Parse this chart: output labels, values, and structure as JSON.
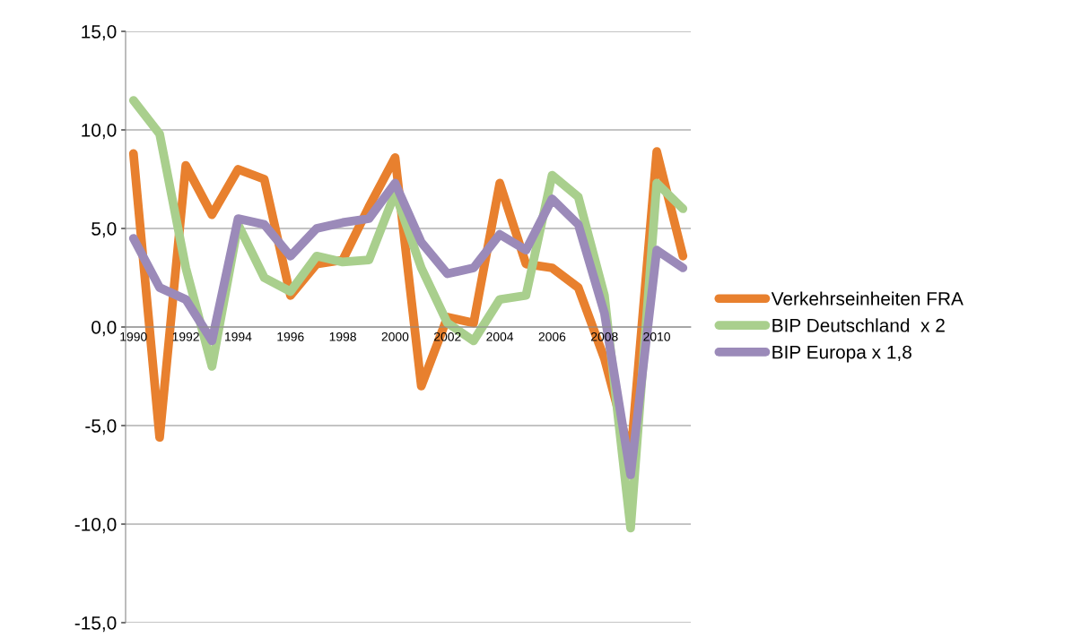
{
  "chart_data": {
    "type": "line",
    "categories": [
      "1990",
      null,
      "1992",
      null,
      "1994",
      null,
      "1996",
      null,
      "1998",
      null,
      "2000",
      null,
      "2002",
      null,
      "2004",
      null,
      "2006",
      null,
      "2008",
      null,
      "2010",
      null
    ],
    "series": [
      {
        "name": "Verkehrseinheiten FRA",
        "color": "#e8802e",
        "values": [
          8.8,
          -5.6,
          8.2,
          5.7,
          8.0,
          7.5,
          1.6,
          3.2,
          3.4,
          6.1,
          8.6,
          -3.0,
          0.5,
          0.2,
          7.3,
          3.2,
          3.0,
          2.0,
          -1.6,
          -6.6,
          8.9,
          3.6
        ]
      },
      {
        "name": "BIP Deutschland  x 2",
        "color": "#a9cf8d",
        "values": [
          11.5,
          9.8,
          3.0,
          -2.0,
          5.2,
          2.5,
          1.8,
          3.6,
          3.3,
          3.4,
          6.8,
          3.0,
          0.2,
          -0.7,
          1.4,
          1.6,
          7.7,
          6.6,
          1.6,
          -10.2,
          7.3,
          6.0
        ]
      },
      {
        "name": "BIP Europa x 1,8",
        "color": "#9b8ab9",
        "values": [
          4.5,
          2.0,
          1.4,
          -0.7,
          5.5,
          5.2,
          3.6,
          5.0,
          5.3,
          5.5,
          7.3,
          4.3,
          2.7,
          3.0,
          4.7,
          3.9,
          6.5,
          5.2,
          0.7,
          -7.5,
          3.9,
          3.0
        ]
      }
    ],
    "ylim": [
      -15,
      15
    ],
    "yticks": [
      {
        "value": -15,
        "label": "-15,0"
      },
      {
        "value": -10,
        "label": "-10,0"
      },
      {
        "value": -5,
        "label": "-5,0"
      },
      {
        "value": 0,
        "label": "0,0"
      },
      {
        "value": 5,
        "label": "5,0"
      },
      {
        "value": 10,
        "label": "10,0"
      },
      {
        "value": 15,
        "label": "15,0"
      }
    ],
    "grid": "y",
    "legend": "right",
    "line_style": "solid",
    "marker": "none"
  }
}
